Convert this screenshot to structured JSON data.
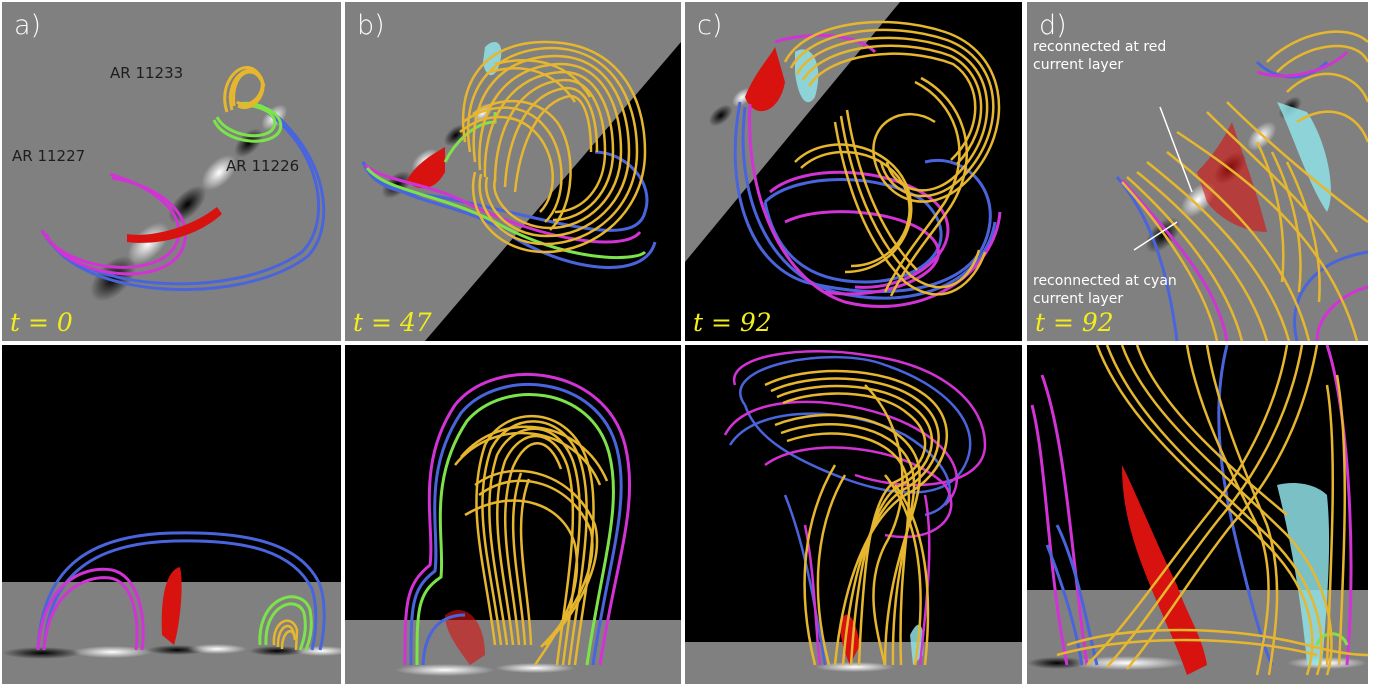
{
  "figure": {
    "panels_top": [
      {
        "label": "a)",
        "time": "t = 0",
        "annotations": [
          "AR 11233",
          "AR 11227",
          "AR 11226"
        ]
      },
      {
        "label": "b)",
        "time": "t = 47"
      },
      {
        "label": "c)",
        "time": "t = 92"
      },
      {
        "label": "d)",
        "time": "t = 92",
        "notes": [
          "reconnected at red current layer",
          "reconnected at cyan current layer"
        ]
      }
    ]
  },
  "colors": {
    "flux_rope": "#e6b72e",
    "field_blue": "#4a64dc",
    "field_magenta": "#d233d4",
    "field_green": "#7de34a",
    "current_red": "#d8120f",
    "current_cyan": "#8fe2e6",
    "label_yellow": "#f2ee1c",
    "photosphere_gray": "#808080"
  }
}
